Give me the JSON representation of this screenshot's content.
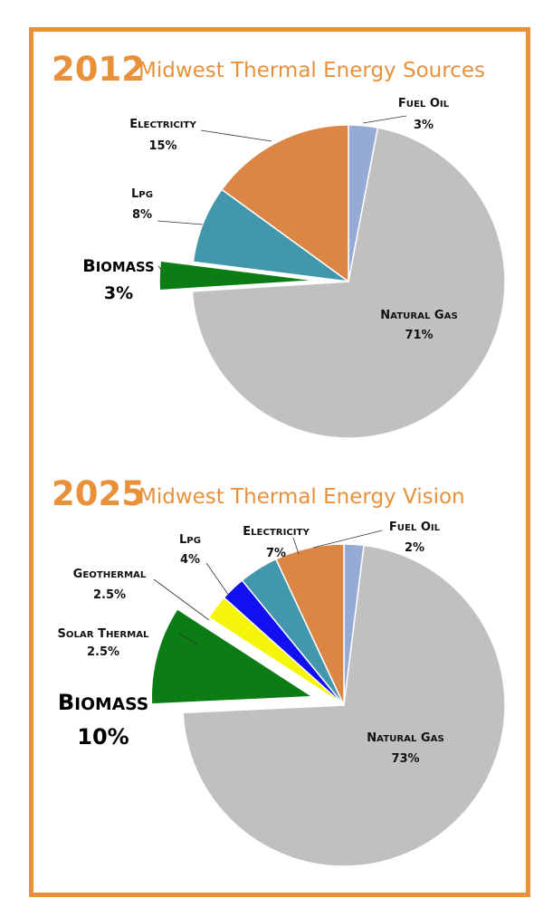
{
  "colors": {
    "accent": "#e8913a",
    "natural_gas": "#c0c0c0",
    "fuel_oil": "#95aad4",
    "electricity": "#dc8645",
    "lpg": "#4397ad",
    "biomass": "#0b7d14",
    "geothermal": "#1010f0",
    "solar_thermal": "#f5f50a"
  },
  "chart_data": [
    {
      "type": "pie",
      "year": "2012",
      "title": "Midwest Thermal Energy Sources",
      "slices": [
        {
          "label": "Fuel Oil",
          "value": 3,
          "value_label": "3%",
          "color": "#95aad4"
        },
        {
          "label": "Natural Gas",
          "value": 71,
          "value_label": "71%",
          "color": "#c0c0c0"
        },
        {
          "label": "Biomass",
          "value": 3,
          "value_label": "3%",
          "color": "#0b7d14",
          "exploded": true
        },
        {
          "label": "LPG",
          "value": 8,
          "value_label": "8%",
          "color": "#4397ad"
        },
        {
          "label": "Electricity",
          "value": 15,
          "value_label": "15%",
          "color": "#dc8645"
        }
      ]
    },
    {
      "type": "pie",
      "year": "2025",
      "title": "Midwest Thermal Energy Vision",
      "slices": [
        {
          "label": "Fuel Oil",
          "value": 2,
          "value_label": "2%",
          "color": "#95aad4"
        },
        {
          "label": "Natural Gas",
          "value": 73,
          "value_label": "73%",
          "color": "#c0c0c0"
        },
        {
          "label": "Biomass",
          "value": 10,
          "value_label": "10%",
          "color": "#0b7d14",
          "exploded": true
        },
        {
          "label": "Solar Thermal",
          "value": 2.5,
          "value_label": "2.5%",
          "color": "#f5f50a"
        },
        {
          "label": "Geothermal",
          "value": 2.5,
          "value_label": "2.5%",
          "color": "#1010f0"
        },
        {
          "label": "LPG",
          "value": 4,
          "value_label": "4%",
          "color": "#4397ad"
        },
        {
          "label": "Electricity",
          "value": 7,
          "value_label": "7%",
          "color": "#dc8645"
        }
      ]
    }
  ]
}
